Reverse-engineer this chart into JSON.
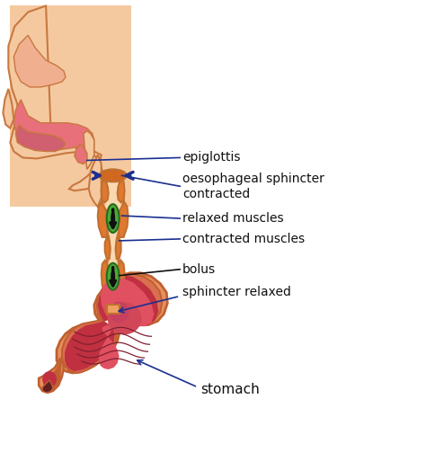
{
  "bg_color": "#ffffff",
  "skin_color": "#F5C9A0",
  "skin_dark": "#C87840",
  "skin_outline": "#C87840",
  "skin_mid": "#EDB882",
  "throat_pink": "#E8707A",
  "tongue_color": "#D06070",
  "nasal_color": "#F0B090",
  "eso_wall": "#F0A060",
  "eso_border": "#C07030",
  "eso_lumen": "#FAD8B0",
  "contracted_color": "#E07830",
  "stomach_outer": "#E89060",
  "stomach_wall": "#C06030",
  "stomach_inner": "#C03040",
  "stomach_light": "#E05060",
  "stomach_highlight": "#F08090",
  "stomach_fold": "#802030",
  "green_outer": "#2A6A20",
  "green_inner": "#4AAA38",
  "black_color": "#101010",
  "blue_arrow": "#1A3090",
  "orange_sphincter": "#D06820",
  "label_color": "#101010",
  "line_color": "#1A3090",
  "figsize": [
    4.74,
    5.03
  ],
  "dpi": 100,
  "labels": {
    "epiglottis": "epiglottis",
    "sphincter_contracted": "oesophageal sphincter\ncontracted",
    "relaxed_muscles": "relaxed muscles",
    "contracted_muscles": "contracted muscles",
    "bolus": "bolus",
    "sphincter_relaxed": "sphincter relaxed",
    "stomach": "stomach"
  }
}
